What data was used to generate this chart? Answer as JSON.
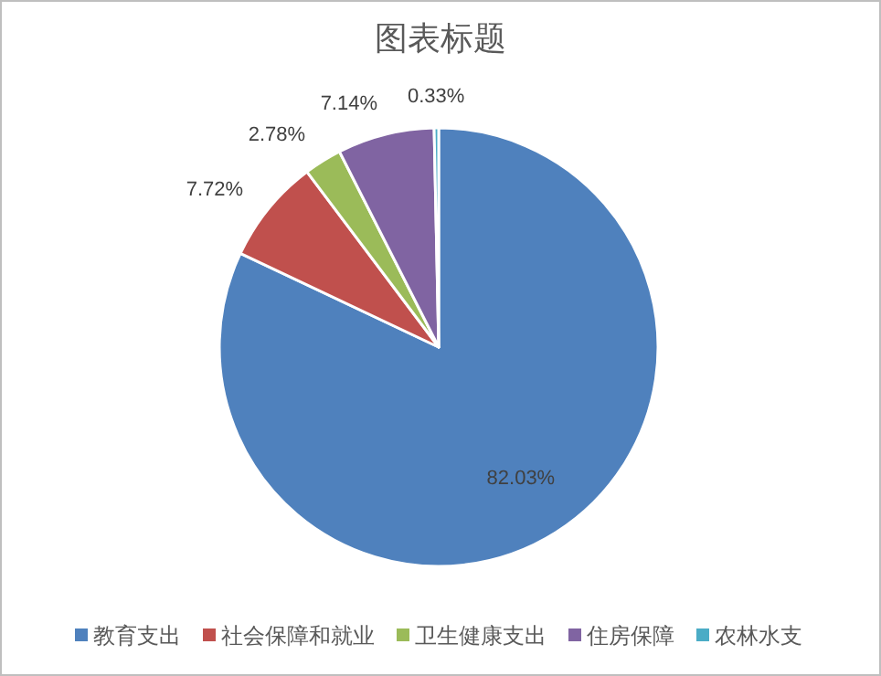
{
  "chart_data": {
    "type": "pie",
    "title": "图表标题",
    "categories": [
      "教育支出",
      "社会保障和就业",
      "卫生健康支出",
      "住房保障",
      "农林水支"
    ],
    "values": [
      82.03,
      7.72,
      2.78,
      7.14,
      0.33
    ],
    "colors": [
      "#4f81bd",
      "#c0504d",
      "#9bbb59",
      "#8064a2",
      "#4bacc6"
    ],
    "value_labels": [
      "82.03%",
      "7.72%",
      "2.78%",
      "7.14%",
      "0.33%"
    ],
    "legend": "bottom"
  }
}
